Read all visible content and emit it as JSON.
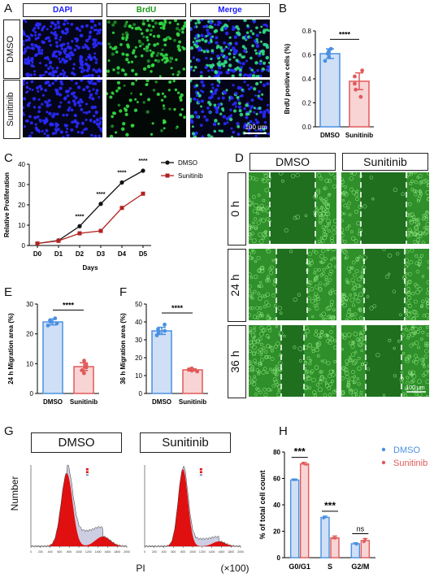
{
  "panels": {
    "A": "A",
    "B": "B",
    "C": "C",
    "D": "D",
    "E": "E",
    "F": "F",
    "G": "G",
    "H": "H"
  },
  "A": {
    "columns": [
      "DAPI",
      "BrdU",
      "Merge"
    ],
    "column_colors": [
      "#1a1aff",
      "#1a9a1a",
      "#1a1aff"
    ],
    "rows": [
      "DMSO",
      "Sunitinib"
    ],
    "scale_bar": "100 μm"
  },
  "D": {
    "columns": [
      "DMSO",
      "Sunitinib"
    ],
    "rows": [
      "0 h",
      "24 h",
      "36 h"
    ],
    "scale_bar": "100 μm"
  },
  "G": {
    "columns": [
      "DMSO",
      "Sunitinib"
    ],
    "ylabel": "Number",
    "xlabel": "PI",
    "xunit": "(×100)",
    "xticks": [
      "0",
      "200",
      "400",
      "600",
      "800",
      "1000",
      "1200",
      "1400",
      "1600",
      "1800",
      "2000"
    ]
  },
  "chart_data": [
    {
      "id": "B",
      "type": "bar",
      "categories": [
        "DMSO",
        "Sunitinib"
      ],
      "values": [
        0.61,
        0.38
      ],
      "errors": [
        0.04,
        0.07
      ],
      "points": [
        [
          0.55,
          0.58,
          0.61,
          0.63,
          0.65
        ],
        [
          0.25,
          0.31,
          0.36,
          0.42,
          0.47
        ]
      ],
      "colors": [
        "#4a90e2",
        "#e05a5a"
      ],
      "fills": [
        "#cfe0f6",
        "#f8d4d4"
      ],
      "ylabel": "BrdU positive cells (%)",
      "ylim": [
        0,
        0.8
      ],
      "yticks": [
        "0.0",
        "0.2",
        "0.4",
        "0.6",
        "0.8"
      ],
      "significance": "****"
    },
    {
      "id": "C",
      "type": "line",
      "categories": [
        "D0",
        "D1",
        "D2",
        "D3",
        "D4",
        "D5"
      ],
      "series": [
        {
          "name": "DMSO",
          "values": [
            1.0,
            2.5,
            9.5,
            20.5,
            31.0,
            36.8
          ],
          "color": "#111111"
        },
        {
          "name": "Sunitinib",
          "values": [
            1.0,
            2.3,
            6.0,
            7.2,
            18.5,
            25.5
          ],
          "color": "#b22222"
        }
      ],
      "ylabel": "Relative Proliferation",
      "xlabel": "Days",
      "ylim": [
        0,
        40
      ],
      "yticks": [
        "0",
        "10",
        "20",
        "30",
        "40"
      ],
      "annotations": [
        "****",
        "****",
        "****",
        "****"
      ],
      "legend": "top-right"
    },
    {
      "id": "E",
      "type": "bar",
      "categories": [
        "DMSO",
        "Sunitinib"
      ],
      "values": [
        24.0,
        9.0
      ],
      "errors": [
        1.0,
        1.3
      ],
      "points": [
        [
          22.8,
          23.5,
          24.0,
          24.5,
          25.2
        ],
        [
          6.8,
          7.8,
          8.7,
          9.6,
          11.0
        ]
      ],
      "colors": [
        "#4a90e2",
        "#e05a5a"
      ],
      "fills": [
        "#cfe0f6",
        "#f8d4d4"
      ],
      "ylabel": "24 h Migration area (%)",
      "ylim": [
        0,
        30
      ],
      "yticks": [
        "0",
        "10",
        "20",
        "30"
      ],
      "significance": "****"
    },
    {
      "id": "F",
      "type": "bar",
      "categories": [
        "DMSO",
        "Sunitinib"
      ],
      "values": [
        35.0,
        13.2
      ],
      "errors": [
        2.0,
        0.6
      ],
      "points": [
        [
          32.5,
          34.0,
          35.0,
          36.0,
          38.5
        ],
        [
          12.3,
          12.8,
          13.2,
          13.5,
          14.0
        ]
      ],
      "colors": [
        "#4a90e2",
        "#e05a5a"
      ],
      "fills": [
        "#cfe0f6",
        "#f8d4d4"
      ],
      "ylabel": "36 h Migration area (%)",
      "ylim": [
        0,
        50
      ],
      "yticks": [
        "0",
        "10",
        "20",
        "30",
        "40",
        "50"
      ],
      "significance": "****"
    },
    {
      "id": "H",
      "type": "bar",
      "categories": [
        "G0/G1",
        "S",
        "G2/M"
      ],
      "series": [
        {
          "name": "DMSO",
          "values": [
            58.8,
            30.5,
            10.5
          ],
          "errors": [
            0.8,
            1.0,
            0.8
          ],
          "color": "#4a90e2",
          "fill": "#cfe0f6"
        },
        {
          "name": "Sunitinib",
          "values": [
            71.0,
            15.0,
            13.0
          ],
          "errors": [
            1.2,
            1.5,
            1.5
          ],
          "color": "#e05a5a",
          "fill": "#f8d4d4"
        }
      ],
      "ylabel": "% of total cell count",
      "ylim": [
        0,
        80
      ],
      "yticks": [
        "0",
        "20",
        "40",
        "60",
        "80"
      ],
      "significance": [
        "***",
        "***",
        "ns"
      ],
      "legend": "top-right"
    }
  ]
}
